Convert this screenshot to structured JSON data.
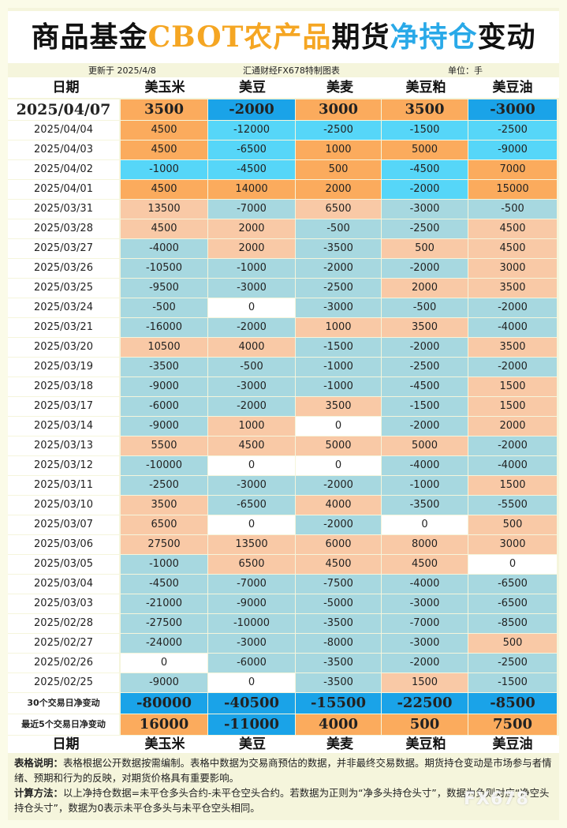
{
  "title": {
    "part1": "商品基金",
    "part2": "CBOT农产品",
    "part3": "期货",
    "part4": "净持仓",
    "part5": "变动"
  },
  "meta": {
    "updated": "更新于 2025/4/8",
    "source": "汇通财经FX678特制图表",
    "unit": "单位：手"
  },
  "columns": [
    "日期",
    "美玉米",
    "美豆",
    "美麦",
    "美豆粕",
    "美豆油"
  ],
  "colors": {
    "orange": "#fbab5d",
    "blue": "#56d6f8",
    "dark_blue": "#1aa3e8",
    "peach": "#f9c9a6",
    "light_blue": "#a7d8e0",
    "white": "#ffffff"
  },
  "rows": [
    {
      "date": "2025/04/07",
      "values": [
        "3500",
        "-2000",
        "3000",
        "3500",
        "-3000"
      ],
      "colors": [
        "o",
        "bd",
        "o",
        "o",
        "bd"
      ]
    },
    {
      "date": "2025/04/04",
      "values": [
        "4500",
        "-12000",
        "-2500",
        "-1500",
        "-2500"
      ],
      "colors": [
        "o",
        "b",
        "b",
        "b",
        "b"
      ]
    },
    {
      "date": "2025/04/03",
      "values": [
        "4500",
        "-6500",
        "1000",
        "5000",
        "-9000"
      ],
      "colors": [
        "o",
        "b",
        "o",
        "o",
        "b"
      ]
    },
    {
      "date": "2025/04/02",
      "values": [
        "-1000",
        "-4500",
        "500",
        "-4500",
        "7000"
      ],
      "colors": [
        "b",
        "b",
        "o",
        "b",
        "o"
      ]
    },
    {
      "date": "2025/04/01",
      "values": [
        "4500",
        "14000",
        "2000",
        "-2000",
        "15000"
      ],
      "colors": [
        "o",
        "o",
        "o",
        "b",
        "o"
      ]
    },
    {
      "date": "2025/03/31",
      "values": [
        "13500",
        "-7000",
        "6500",
        "-3000",
        "-500"
      ],
      "colors": [
        "p",
        "lb",
        "p",
        "lb",
        "lb"
      ]
    },
    {
      "date": "2025/03/28",
      "values": [
        "4500",
        "2000",
        "-500",
        "-2500",
        "4500"
      ],
      "colors": [
        "p",
        "p",
        "lb",
        "lb",
        "p"
      ]
    },
    {
      "date": "2025/03/27",
      "values": [
        "-4000",
        "2000",
        "-3500",
        "500",
        "4500"
      ],
      "colors": [
        "lb",
        "p",
        "lb",
        "p",
        "p"
      ]
    },
    {
      "date": "2025/03/26",
      "values": [
        "-10500",
        "-1000",
        "-2000",
        "-2000",
        "3000"
      ],
      "colors": [
        "lb",
        "lb",
        "lb",
        "lb",
        "p"
      ]
    },
    {
      "date": "2025/03/25",
      "values": [
        "-9500",
        "-3000",
        "-2500",
        "2000",
        "3500"
      ],
      "colors": [
        "lb",
        "lb",
        "lb",
        "p",
        "p"
      ]
    },
    {
      "date": "2025/03/24",
      "values": [
        "-500",
        "0",
        "-3000",
        "-500",
        "-2000"
      ],
      "colors": [
        "lb",
        "w",
        "lb",
        "lb",
        "lb"
      ]
    },
    {
      "date": "2025/03/21",
      "values": [
        "-16000",
        "-2000",
        "1000",
        "3500",
        "-4000"
      ],
      "colors": [
        "lb",
        "lb",
        "p",
        "p",
        "lb"
      ]
    },
    {
      "date": "2025/03/20",
      "values": [
        "10500",
        "4000",
        "-1500",
        "-2000",
        "3500"
      ],
      "colors": [
        "p",
        "p",
        "lb",
        "lb",
        "p"
      ]
    },
    {
      "date": "2025/03/19",
      "values": [
        "-3500",
        "-500",
        "-1000",
        "-2500",
        "-2000"
      ],
      "colors": [
        "lb",
        "lb",
        "lb",
        "lb",
        "lb"
      ]
    },
    {
      "date": "2025/03/18",
      "values": [
        "-9000",
        "-3000",
        "-1000",
        "-4500",
        "1500"
      ],
      "colors": [
        "lb",
        "lb",
        "lb",
        "lb",
        "p"
      ]
    },
    {
      "date": "2025/03/17",
      "values": [
        "-6000",
        "-2000",
        "3500",
        "-1500",
        "1500"
      ],
      "colors": [
        "lb",
        "lb",
        "p",
        "lb",
        "p"
      ]
    },
    {
      "date": "2025/03/14",
      "values": [
        "-9000",
        "1000",
        "0",
        "-2000",
        "2000"
      ],
      "colors": [
        "lb",
        "p",
        "w",
        "lb",
        "p"
      ]
    },
    {
      "date": "2025/03/13",
      "values": [
        "5500",
        "4500",
        "5000",
        "5000",
        "-2000"
      ],
      "colors": [
        "p",
        "p",
        "p",
        "p",
        "lb"
      ]
    },
    {
      "date": "2025/03/12",
      "values": [
        "-10000",
        "0",
        "0",
        "-4000",
        "-4000"
      ],
      "colors": [
        "lb",
        "w",
        "w",
        "lb",
        "lb"
      ]
    },
    {
      "date": "2025/03/11",
      "values": [
        "-2500",
        "-3000",
        "-2000",
        "-1000",
        "1500"
      ],
      "colors": [
        "lb",
        "lb",
        "lb",
        "lb",
        "p"
      ]
    },
    {
      "date": "2025/03/10",
      "values": [
        "3500",
        "-6500",
        "4000",
        "-3500",
        "-5500"
      ],
      "colors": [
        "p",
        "lb",
        "p",
        "lb",
        "lb"
      ]
    },
    {
      "date": "2025/03/07",
      "values": [
        "6500",
        "0",
        "-2000",
        "0",
        "500"
      ],
      "colors": [
        "p",
        "w",
        "lb",
        "w",
        "p"
      ]
    },
    {
      "date": "2025/03/06",
      "values": [
        "27500",
        "13500",
        "6000",
        "8000",
        "3000"
      ],
      "colors": [
        "p",
        "p",
        "p",
        "p",
        "p"
      ]
    },
    {
      "date": "2025/03/05",
      "values": [
        "-1000",
        "6500",
        "4500",
        "4500",
        "0"
      ],
      "colors": [
        "lb",
        "p",
        "p",
        "p",
        "w"
      ]
    },
    {
      "date": "2025/03/04",
      "values": [
        "-4500",
        "-7000",
        "-7500",
        "-4000",
        "-6500"
      ],
      "colors": [
        "lb",
        "lb",
        "lb",
        "lb",
        "lb"
      ]
    },
    {
      "date": "2025/03/03",
      "values": [
        "-21000",
        "-9000",
        "-5000",
        "-3000",
        "-6500"
      ],
      "colors": [
        "lb",
        "lb",
        "lb",
        "lb",
        "lb"
      ]
    },
    {
      "date": "2025/02/28",
      "values": [
        "-27500",
        "-10000",
        "-3500",
        "-7000",
        "-8500"
      ],
      "colors": [
        "lb",
        "lb",
        "lb",
        "lb",
        "lb"
      ]
    },
    {
      "date": "2025/02/27",
      "values": [
        "-24000",
        "-3000",
        "-8000",
        "-3000",
        "500"
      ],
      "colors": [
        "lb",
        "lb",
        "lb",
        "lb",
        "p"
      ]
    },
    {
      "date": "2025/02/26",
      "values": [
        "0",
        "-6000",
        "-3500",
        "-2000",
        "-2500"
      ],
      "colors": [
        "w",
        "lb",
        "lb",
        "lb",
        "lb"
      ]
    },
    {
      "date": "2025/02/25",
      "values": [
        "-9000",
        "0",
        "-3500",
        "1500",
        "-1500"
      ],
      "colors": [
        "lb",
        "w",
        "lb",
        "p",
        "lb"
      ]
    }
  ],
  "summary": [
    {
      "label": "30个交易日净变动",
      "values": [
        "-80000",
        "-40500",
        "-15500",
        "-22500",
        "-8500"
      ],
      "colors": [
        "bd",
        "bd",
        "bd",
        "bd",
        "bd"
      ]
    },
    {
      "label": "最近5个交易日净变动",
      "values": [
        "16000",
        "-11000",
        "4000",
        "500",
        "7500"
      ],
      "colors": [
        "o",
        "bd",
        "o",
        "o",
        "o"
      ]
    }
  ],
  "notes": {
    "desc_label": "表格说明：",
    "desc_text": "表格根据公开数据按需编制。表格中数据为交易商预估的数据，并非最终交易数据。期货持仓变动是市场参与者情绪、预期和行为的反映，对期货价格具有重要影响。",
    "calc_label": "计算方法：",
    "calc_text": "以上净持仓数据=未平仓多头合约-未平仓空头合约。若数据为正则为“净多头持仓头寸”，数据为负则对应“净空头持仓头寸”，数据为0表示未平仓多头与未平仓空头相同。"
  },
  "watermark": "FX678"
}
